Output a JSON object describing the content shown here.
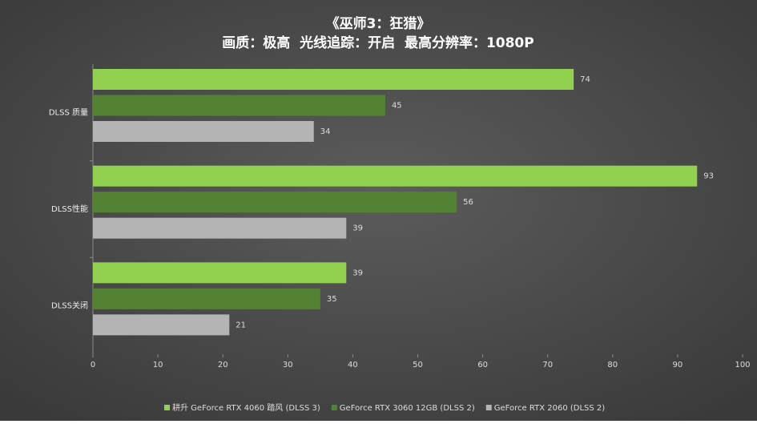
{
  "chart_data": {
    "type": "hbar",
    "title": "《巫师3：狂猎》",
    "subtitle": "画质：极高  光线追踪：开启  最高分辨率：1080P",
    "categories": [
      "DLSS 质量",
      "DLSS性能",
      "DLSS关闭"
    ],
    "series": [
      {
        "name": "耕升 GeForce RTX 4060 踏风 (DLSS 3)",
        "color": "#92d050",
        "values": [
          74,
          93,
          39
        ]
      },
      {
        "name": "GeForce RTX 3060 12GB (DLSS 2)",
        "color": "#548235",
        "values": [
          45,
          56,
          35
        ]
      },
      {
        "name": "GeForce RTX 2060 (DLSS 2)",
        "color": "#b4b4b4",
        "values": [
          34,
          39,
          21
        ]
      }
    ],
    "xlim": [
      0,
      100
    ],
    "xticks": [
      0,
      10,
      20,
      30,
      40,
      50,
      60,
      70,
      80,
      90,
      100
    ]
  }
}
